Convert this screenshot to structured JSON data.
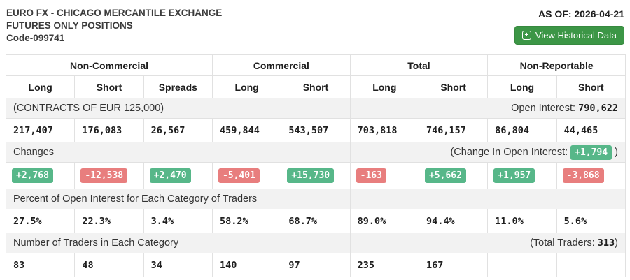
{
  "header": {
    "title_line1": "EURO FX - CHICAGO MERCANTILE EXCHANGE",
    "title_line2": "FUTURES ONLY POSITIONS",
    "title_line3": "Code-099741",
    "as_of": "AS OF: 2026-04-21",
    "view_historical_label": "View Historical Data",
    "view_historical_icon": "calendar-plus-icon",
    "icon_glyph": "+"
  },
  "colors": {
    "button_green": "#3c9646",
    "badge_green": "#57b789",
    "badge_red": "#e87e7e",
    "label_row_bg": "#f2f2f2",
    "border": "#e1e1e1"
  },
  "table": {
    "groups": [
      {
        "label": "Non-Commercial",
        "span": 3
      },
      {
        "label": "Commercial",
        "span": 2
      },
      {
        "label": "Total",
        "span": 2
      },
      {
        "label": "Non-Reportable",
        "span": 2
      }
    ],
    "columns": [
      "Long",
      "Short",
      "Spreads",
      "Long",
      "Short",
      "Long",
      "Short",
      "Long",
      "Short"
    ],
    "contracts_label": "(CONTRACTS OF EUR 125,000)",
    "open_interest_label": "Open Interest:",
    "open_interest_value": "790,622",
    "positions": [
      "217,407",
      "176,083",
      "26,567",
      "459,844",
      "543,507",
      "703,818",
      "746,157",
      "86,804",
      "44,465"
    ],
    "changes_label": "Changes",
    "change_in_oi_label": "(Change In Open Interest:",
    "change_in_oi_value": "+1,794",
    "change_in_oi_suffix": ")",
    "changes": [
      "+2,768",
      "-12,538",
      "+2,470",
      "-5,401",
      "+15,730",
      "-163",
      "+5,662",
      "+1,957",
      "-3,868"
    ],
    "percent_label": "Percent of Open Interest for Each Category of Traders",
    "percents": [
      "27.5%",
      "22.3%",
      "3.4%",
      "58.2%",
      "68.7%",
      "89.0%",
      "94.4%",
      "11.0%",
      "5.6%"
    ],
    "traders_label": "Number of Traders in Each Category",
    "total_traders_label": "(Total Traders:",
    "total_traders_value": "313",
    "total_traders_suffix": ")",
    "traders": [
      "83",
      "48",
      "34",
      "140",
      "97",
      "235",
      "167",
      "",
      ""
    ]
  }
}
